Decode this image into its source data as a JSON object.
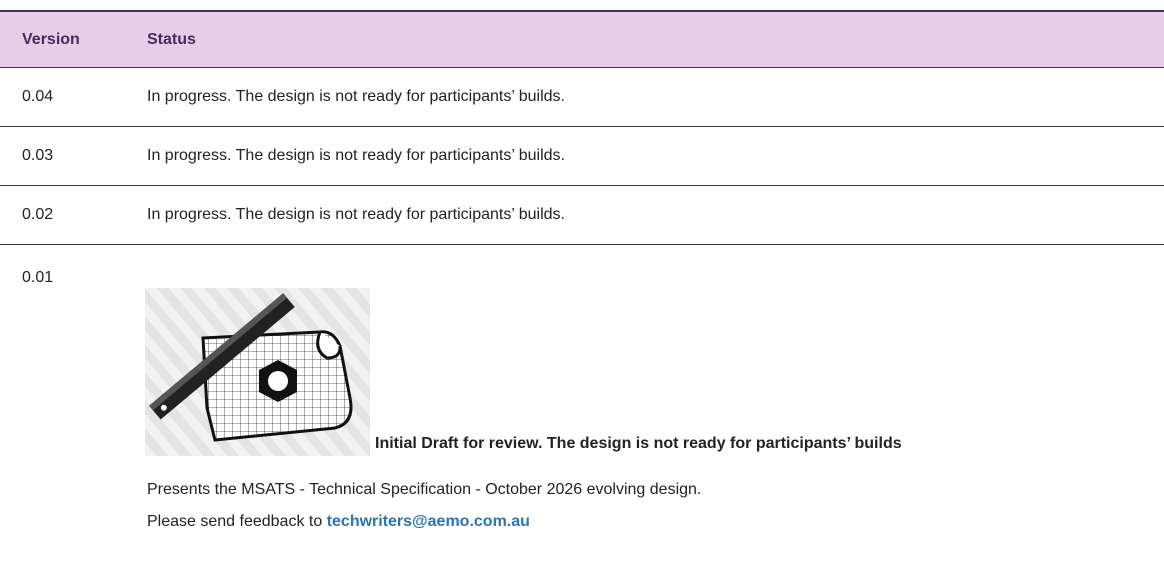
{
  "table": {
    "columns": [
      "Version",
      "Status"
    ],
    "rows": [
      {
        "version": "0.04",
        "status": "In progress. The design is not ready for participants’ builds."
      },
      {
        "version": "0.03",
        "status": "In progress. The design is not ready for participants’ builds."
      },
      {
        "version": "0.02",
        "status": "In progress. The design is not ready for participants’ builds."
      },
      {
        "version": "0.01",
        "status": "Initial Draft for review. The design is not ready for participants’ builds",
        "description": "Presents the MSATS - Technical Specification - October 2026 evolving design.",
        "feedback_prefix": "Please send feedback to",
        "feedback_email": "techwriters@aemo.com.au"
      }
    ]
  }
}
